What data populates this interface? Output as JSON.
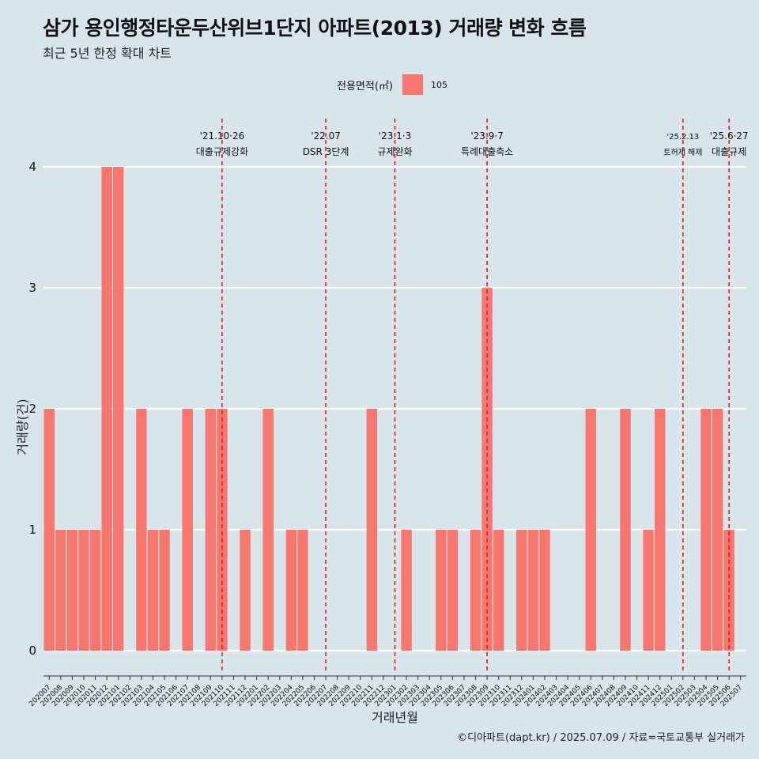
{
  "title": "삼가 용인행정타운두산위브1단지 아파트(2013) 거래량 변화 흐름",
  "subtitle": "최근 5년 한정 확대 차트",
  "legend": {
    "title": "전용면적(㎡)",
    "item": "105",
    "color": "#f8766d"
  },
  "caption": "©디아파트(dapt.kr) / 2025.07.09 / 자료=국토교통부 실거래가",
  "chart_data": {
    "type": "bar",
    "xlabel": "거래년월",
    "ylabel": "거래량(건)",
    "ylim": [
      0,
      4
    ],
    "yticks": [
      0,
      1,
      2,
      3,
      4
    ],
    "grid": true,
    "legend_position": "top",
    "categories": [
      "202007",
      "202008",
      "202009",
      "202010",
      "202011",
      "202012",
      "202101",
      "202102",
      "202103",
      "202104",
      "202105",
      "202106",
      "202107",
      "202108",
      "202109",
      "202110",
      "202111",
      "202112",
      "202201",
      "202202",
      "202203",
      "202204",
      "202205",
      "202206",
      "202207",
      "202208",
      "202209",
      "202210",
      "202211",
      "202212",
      "202301",
      "202302",
      "202303",
      "202304",
      "202305",
      "202306",
      "202307",
      "202308",
      "202309",
      "202310",
      "202311",
      "202312",
      "202401",
      "202402",
      "202403",
      "202404",
      "202405",
      "202406",
      "202407",
      "202408",
      "202409",
      "202410",
      "202411",
      "202412",
      "202501",
      "202502",
      "202503",
      "202504",
      "202505",
      "202506",
      "202507"
    ],
    "series": [
      {
        "name": "105",
        "color": "#f8766d",
        "values": [
          2,
          1,
          1,
          1,
          1,
          4,
          4,
          0,
          2,
          1,
          1,
          0,
          2,
          0,
          2,
          2,
          0,
          1,
          0,
          2,
          0,
          1,
          1,
          0,
          0,
          0,
          0,
          0,
          2,
          0,
          0,
          1,
          0,
          0,
          1,
          1,
          0,
          1,
          3,
          1,
          0,
          1,
          1,
          1,
          0,
          0,
          0,
          2,
          0,
          0,
          2,
          0,
          1,
          2,
          0,
          0,
          0,
          2,
          2,
          1,
          0
        ]
      }
    ],
    "annotations": [
      {
        "x": "202110",
        "date": "'21.10·26",
        "label": "대출규제강화",
        "small": false
      },
      {
        "x": "202207",
        "date": "'22.07",
        "label": "DSR 3단계",
        "small": false
      },
      {
        "x": "202301",
        "date": "'23.1·3",
        "label": "규제완화",
        "small": false
      },
      {
        "x": "202309",
        "date": "'23.9·7",
        "label": "특례대출축소",
        "small": false
      },
      {
        "x": "202502",
        "date": "'25.2.13",
        "label": "토허제 해제",
        "small": true
      },
      {
        "x": "202506",
        "date": "'25.6·27",
        "label": "대출규제",
        "small": false
      }
    ]
  }
}
